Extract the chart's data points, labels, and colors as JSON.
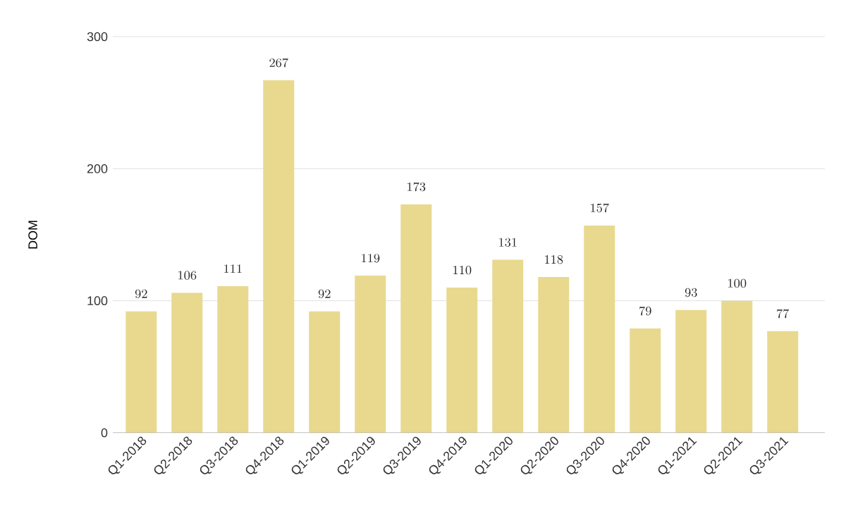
{
  "chart_data": {
    "type": "bar",
    "ylabel": "DOM",
    "categories": [
      "Q1-2018",
      "Q2-2018",
      "Q3-2018",
      "Q4-2018",
      "Q1-2019",
      "Q2-2019",
      "Q3-2019",
      "Q4-2019",
      "Q1-2020",
      "Q2-2020",
      "Q3-2020",
      "Q4-2020",
      "Q1-2021",
      "Q2-2021",
      "Q3-2021"
    ],
    "values": [
      92,
      106,
      111,
      267,
      92,
      119,
      173,
      110,
      131,
      118,
      157,
      79,
      93,
      100,
      77
    ],
    "color": "#e8d98f",
    "ylim": [
      0,
      300
    ],
    "yticks": [
      0,
      100,
      200,
      300
    ],
    "grid": "y",
    "data_labels": true
  }
}
